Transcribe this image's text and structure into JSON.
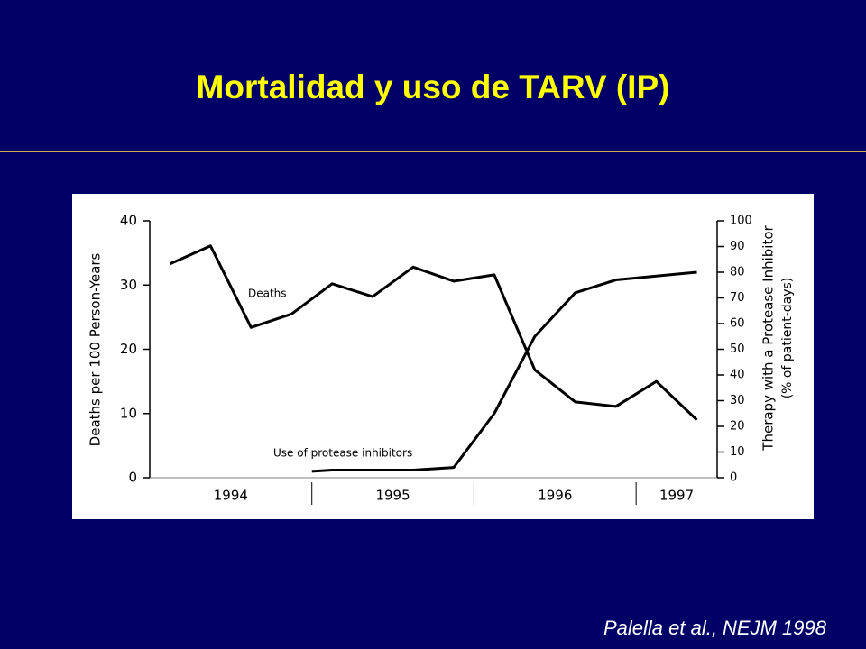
{
  "slide": {
    "title": "Mortalidad y uso de TARV (IP)",
    "citation": "Palella et al., NEJM 1998"
  },
  "chart_data": {
    "type": "line",
    "ylabel": "Deaths per 100 Person-Years",
    "y2label": "Therapy with a Protease Inhibitor",
    "y2sublabel": "(% of patient-days)",
    "xlim": [
      1994,
      1997.5
    ],
    "xticks": [
      {
        "value": 1994,
        "label": "1994"
      },
      {
        "value": 1995,
        "label": "1995"
      },
      {
        "value": 1996,
        "label": "1996"
      },
      {
        "value": 1997,
        "label": "1997"
      }
    ],
    "ylim": [
      0,
      40
    ],
    "yticks": [
      0,
      10,
      20,
      30,
      40
    ],
    "y2lim": [
      0,
      100
    ],
    "y2ticks": [
      0,
      10,
      20,
      30,
      40,
      50,
      60,
      70,
      80,
      90,
      100
    ],
    "series": [
      {
        "name": "Deaths",
        "color": "#000000",
        "x": [
          1994.125,
          1994.375,
          1994.625,
          1994.875,
          1995.125,
          1995.375,
          1995.625,
          1995.875,
          1996.125,
          1996.375,
          1996.625,
          1996.875,
          1997.125,
          1997.375
        ],
        "values": [
          33.3,
          36.1,
          23.4,
          25.5,
          30.2,
          28.2,
          32.8,
          30.6,
          31.6,
          16.8,
          11.8,
          11.1,
          15.0,
          9.0
        ]
      },
      {
        "name": "Use of protease inhibitors",
        "color": "#000000",
        "axis": "y2",
        "x": [
          1995.0,
          1995.125,
          1995.375,
          1995.625,
          1995.875,
          1996.125,
          1996.375,
          1996.625,
          1996.875,
          1997.125,
          1997.375
        ],
        "values": [
          2.5,
          3,
          3,
          3,
          4,
          25,
          55,
          72,
          77,
          78.5,
          80
        ]
      }
    ]
  }
}
